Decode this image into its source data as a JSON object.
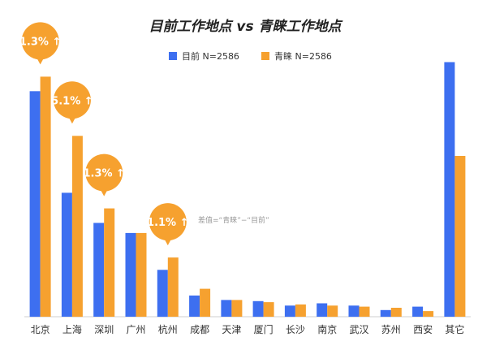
{
  "colors": {
    "current": "#3d6ff0",
    "desired": "#f6a12f",
    "axis": "#cfcfcf"
  },
  "chart_data": {
    "type": "bar",
    "title": "目前工作地点 vs 青睐工作地点",
    "categories": [
      "北京",
      "上海",
      "深圳",
      "广州",
      "杭州",
      "成都",
      "天津",
      "厦门",
      "长沙",
      "南京",
      "武汉",
      "苏州",
      "西安",
      "其它"
    ],
    "series": [
      {
        "name": "目前 N=2586",
        "values": [
          20.2,
          11.1,
          8.4,
          7.5,
          4.2,
          1.9,
          1.5,
          1.4,
          1.0,
          1.2,
          1.0,
          0.6,
          0.9,
          22.8
        ]
      },
      {
        "name": "青睐 N=2586",
        "values": [
          21.5,
          16.2,
          9.7,
          7.5,
          5.3,
          2.5,
          1.5,
          1.3,
          1.1,
          1.0,
          0.9,
          0.8,
          0.5,
          14.4
        ]
      }
    ],
    "ylim": [
      0,
      24
    ],
    "annotations": [
      {
        "category": "北京",
        "text": "1.3%",
        "arrow": "↑"
      },
      {
        "category": "上海",
        "text": "5.1%",
        "arrow": "↑"
      },
      {
        "category": "深圳",
        "text": "1.3%",
        "arrow": "↑"
      },
      {
        "category": "杭州",
        "text": "1.1%",
        "arrow": "↑"
      }
    ],
    "note": "差值=“青睐”−“目前”",
    "legend_position": "top-center",
    "grid": false
  }
}
